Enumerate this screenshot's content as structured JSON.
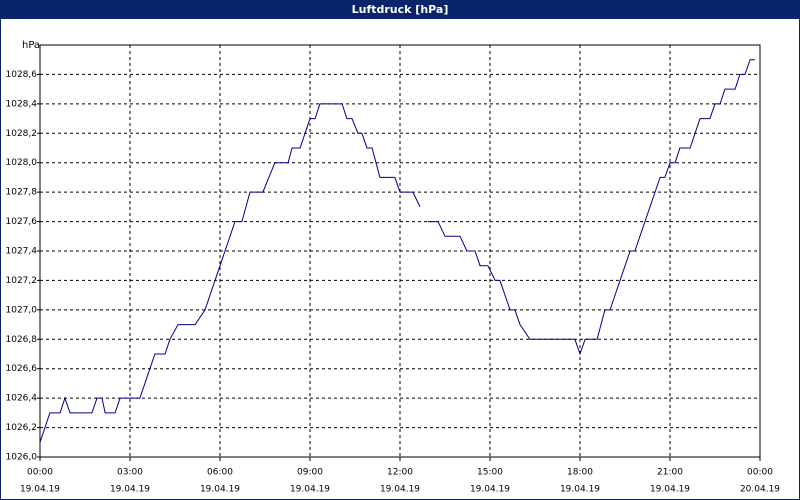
{
  "chart_data": {
    "type": "line",
    "title": "Luftdruck [hPa]",
    "ylabel": "hPa",
    "x": [
      0,
      0.33,
      0.67,
      0.83,
      1.0,
      1.73,
      1.9,
      2.07,
      2.17,
      2.5,
      2.67,
      3.33,
      3.83,
      4.17,
      4.33,
      4.6,
      5.17,
      5.5,
      6.5,
      6.73,
      7.0,
      7.43,
      7.83,
      8.27,
      8.4,
      8.67,
      9.0,
      9.17,
      9.33,
      10.07,
      10.23,
      10.4,
      10.6,
      10.73,
      10.9,
      11.07,
      11.33,
      11.83,
      12.0,
      12.43,
      12.67,
      12.8,
      12.93,
      13.27,
      13.5,
      14.0,
      14.23,
      14.5,
      14.67,
      14.93,
      15.17,
      15.33,
      15.67,
      15.83,
      16.0,
      16.33,
      17.83,
      18.0,
      18.17,
      18.57,
      18.83,
      19.0,
      19.67,
      19.83,
      20.67,
      20.83,
      21.0,
      21.17,
      21.33,
      21.67,
      22.0,
      22.33,
      22.5,
      22.67,
      22.83,
      23.17,
      23.33,
      23.5,
      23.67,
      23.83
    ],
    "series": [
      {
        "name": "Luftdruck",
        "color": "#00008b",
        "values": [
          1026.1,
          1026.3,
          1026.3,
          1026.4,
          1026.3,
          1026.3,
          1026.4,
          1026.4,
          1026.3,
          1026.3,
          1026.4,
          1026.4,
          1026.7,
          1026.7,
          1026.8,
          1026.9,
          1026.9,
          1027.0,
          1027.6,
          1027.6,
          1027.8,
          1027.8,
          1028.0,
          1028.0,
          1028.1,
          1028.1,
          1028.3,
          1028.3,
          1028.4,
          1028.4,
          1028.3,
          1028.3,
          1028.2,
          1028.2,
          1028.1,
          1028.1,
          1027.9,
          1027.9,
          1027.8,
          1027.8,
          1027.7,
          null,
          1027.6,
          1027.6,
          1027.5,
          1027.5,
          1027.4,
          1027.4,
          1027.3,
          1027.3,
          1027.2,
          1027.2,
          1027.0,
          1027.0,
          1026.9,
          1026.8,
          1026.8,
          1026.7,
          1026.8,
          1026.8,
          1027.0,
          1027.0,
          1027.4,
          1027.4,
          1027.9,
          1027.9,
          1028.0,
          1028.0,
          1028.1,
          1028.1,
          1028.3,
          1028.3,
          1028.4,
          1028.4,
          1028.5,
          1028.5,
          1028.6,
          1028.6,
          1028.7,
          1028.7
        ]
      }
    ],
    "xlim": [
      0,
      24
    ],
    "xticks": [
      {
        "value": 0,
        "label": "00:00"
      },
      {
        "value": 3,
        "label": "03:00"
      },
      {
        "value": 6,
        "label": "06:00"
      },
      {
        "value": 9,
        "label": "09:00"
      },
      {
        "value": 12,
        "label": "12:00"
      },
      {
        "value": 15,
        "label": "15:00"
      },
      {
        "value": 18,
        "label": "18:00"
      },
      {
        "value": 21,
        "label": "21:00"
      },
      {
        "value": 24,
        "label": "00:00"
      }
    ],
    "xtick_dates": [
      "19.04.19",
      "19.04.19",
      "19.04.19",
      "19.04.19",
      "19.04.19",
      "19.04.19",
      "19.04.19",
      "19.04.19",
      "20.04.19"
    ],
    "ylim": [
      1026.0,
      1028.8
    ],
    "yticks": [
      {
        "value": 1026.0,
        "label": "1026,0"
      },
      {
        "value": 1026.2,
        "label": "1026,2"
      },
      {
        "value": 1026.4,
        "label": "1026,4"
      },
      {
        "value": 1026.6,
        "label": "1026,6"
      },
      {
        "value": 1026.8,
        "label": "1026,8"
      },
      {
        "value": 1027.0,
        "label": "1027,0"
      },
      {
        "value": 1027.2,
        "label": "1027,2"
      },
      {
        "value": 1027.4,
        "label": "1027,4"
      },
      {
        "value": 1027.6,
        "label": "1027,6"
      },
      {
        "value": 1027.8,
        "label": "1027,8"
      },
      {
        "value": 1028.0,
        "label": "1028,0"
      },
      {
        "value": 1028.2,
        "label": "1028,2"
      },
      {
        "value": 1028.4,
        "label": "1028,4"
      },
      {
        "value": 1028.6,
        "label": "1028,6"
      }
    ],
    "grid": true
  }
}
